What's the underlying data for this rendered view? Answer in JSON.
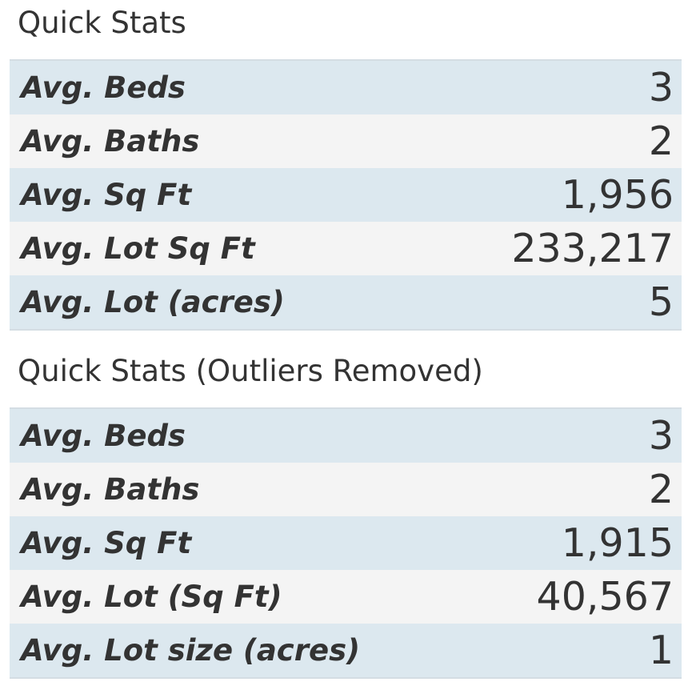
{
  "sections": [
    {
      "title": "Quick Stats",
      "rows": [
        {
          "label": "Avg. Beds",
          "value": "3"
        },
        {
          "label": "Avg. Baths",
          "value": "2"
        },
        {
          "label": "Avg. Sq Ft",
          "value": "1,956"
        },
        {
          "label": "Avg. Lot Sq Ft",
          "value": "233,217"
        },
        {
          "label": "Avg. Lot (acres)",
          "value": "5"
        }
      ]
    },
    {
      "title": "Quick Stats (Outliers Removed)",
      "rows": [
        {
          "label": "Avg. Beds",
          "value": "3"
        },
        {
          "label": "Avg. Baths",
          "value": "2"
        },
        {
          "label": "Avg. Sq Ft",
          "value": "1,915"
        },
        {
          "label": "Avg. Lot (Sq Ft)",
          "value": "40,567"
        },
        {
          "label": "Avg. Lot size (acres)",
          "value": "1"
        }
      ]
    }
  ],
  "colors": {
    "row_odd": "#dce8ef",
    "row_even": "#f4f4f4",
    "text": "#333333",
    "border": "#d4dde3"
  }
}
